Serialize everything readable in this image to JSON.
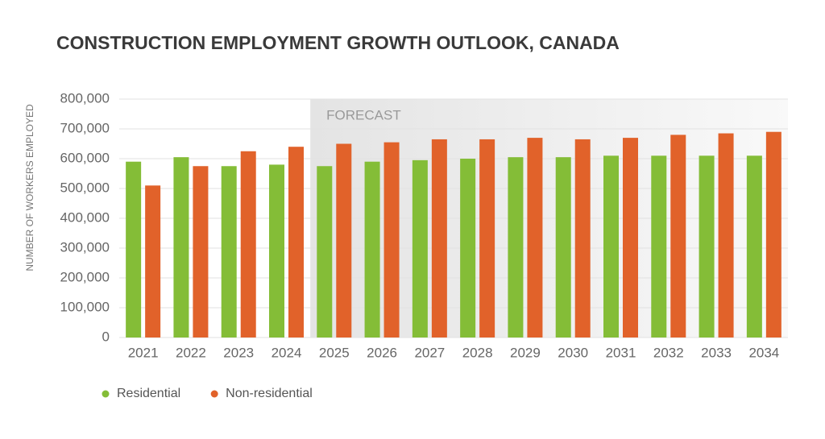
{
  "chart_data": {
    "type": "bar",
    "title": "CONSTRUCTION EMPLOYMENT GROWTH OUTLOOK, CANADA",
    "y_label": "NUMBER OF WORKERS EMPLOYED",
    "categories": [
      "2021",
      "2022",
      "2023",
      "2024",
      "2025",
      "2026",
      "2027",
      "2028",
      "2029",
      "2030",
      "2031",
      "2032",
      "2033",
      "2034"
    ],
    "series": [
      {
        "name": "Residential",
        "color": "#84bd37",
        "values": [
          590000,
          605000,
          575000,
          580000,
          575000,
          590000,
          595000,
          600000,
          605000,
          605000,
          610000,
          610000,
          610000,
          610000
        ]
      },
      {
        "name": "Non-residential",
        "color": "#e1622a",
        "values": [
          510000,
          575000,
          625000,
          640000,
          650000,
          655000,
          665000,
          665000,
          670000,
          665000,
          670000,
          680000,
          685000,
          690000
        ]
      }
    ],
    "annotation": {
      "text": "FORECAST",
      "from": "2025"
    },
    "ylim": [
      0,
      800000
    ],
    "yticks": [
      0,
      {
        "value": 100000,
        "label": "100,000"
      },
      {
        "value": 200000,
        "label": "200,000"
      },
      {
        "value": 300000,
        "label": "300,000"
      },
      {
        "value": 400000,
        "label": "400,000"
      },
      {
        "value": 500000,
        "label": "500,000"
      },
      {
        "value": 600000,
        "label": "600,000"
      },
      {
        "value": 700000,
        "label": "700,000"
      },
      {
        "value": 800000,
        "label": "800,000"
      }
    ],
    "grid": true,
    "legend": "bottom-left"
  }
}
